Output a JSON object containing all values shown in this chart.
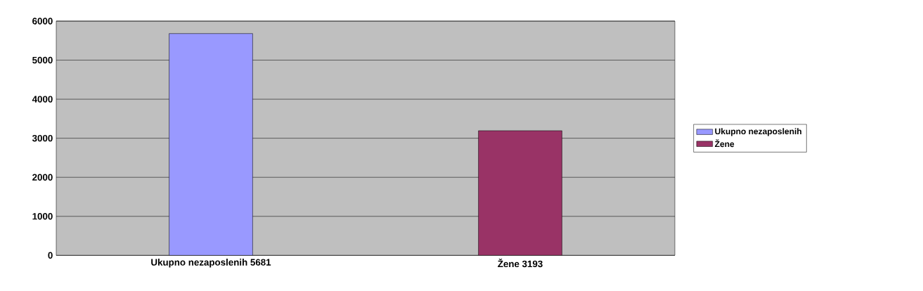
{
  "chart_data": {
    "type": "bar",
    "categories": [
      "Ukupno nezaposlenih 5681",
      "Žene 3193"
    ],
    "series": [
      {
        "name": "Ukupno nezaposlenih",
        "color": "#9999ff",
        "values": [
          5681,
          null
        ]
      },
      {
        "name": "Žene",
        "color": "#993366",
        "values": [
          null,
          3193
        ]
      }
    ],
    "ylim": [
      0,
      6000
    ],
    "yticks": [
      0,
      1000,
      2000,
      3000,
      4000,
      5000,
      6000
    ],
    "grid": "y",
    "legend": "right"
  }
}
